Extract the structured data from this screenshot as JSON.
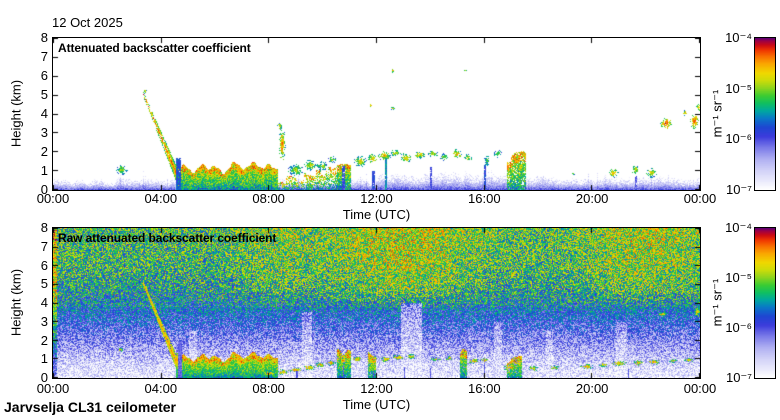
{
  "page": {
    "date_title": "12 Oct 2025",
    "instrument_label": "Jarvselja CL31 ceilometer",
    "background_color": "#ffffff",
    "text_color": "#000000"
  },
  "colormap_stops": [
    [
      0,
      "#ffffff"
    ],
    [
      0.05,
      "#ececfc"
    ],
    [
      0.12,
      "#d4d4f8"
    ],
    [
      0.2,
      "#b0b0f2"
    ],
    [
      0.28,
      "#7878e8"
    ],
    [
      0.35,
      "#3c3cdc"
    ],
    [
      0.41,
      "#1e46d2"
    ],
    [
      0.47,
      "#0a78c8"
    ],
    [
      0.52,
      "#00a8a0"
    ],
    [
      0.57,
      "#10c060"
    ],
    [
      0.62,
      "#3ccc32"
    ],
    [
      0.67,
      "#8cd41e"
    ],
    [
      0.72,
      "#ccdc0a"
    ],
    [
      0.77,
      "#f0d800"
    ],
    [
      0.83,
      "#faa800"
    ],
    [
      0.88,
      "#f87000"
    ],
    [
      0.92,
      "#f03800"
    ],
    [
      0.955,
      "#cc0a14"
    ],
    [
      0.985,
      "#98004b"
    ],
    [
      1,
      "#5f0070"
    ]
  ],
  "chart_data": [
    {
      "type": "heatmap",
      "title": "Attenuated backscatter coefficient",
      "xlabel": "Time (UTC)",
      "ylabel": "Height (km)",
      "x_range_hours": [
        0,
        24
      ],
      "y_range_km": [
        0,
        8
      ],
      "x_tick_labels": [
        "00:00",
        "04:00",
        "08:00",
        "12:00",
        "16:00",
        "20:00",
        "00:00"
      ],
      "y_tick_labels": [
        "0",
        "1",
        "2",
        "3",
        "4",
        "5",
        "6",
        "7",
        "8"
      ],
      "grid": false,
      "colorbar": {
        "unit": "m⁻¹ sr⁻¹",
        "tick_labels": [
          "10⁻⁴",
          "10⁻⁵",
          "10⁻⁶",
          "10⁻⁷"
        ],
        "scale": "log",
        "range": [
          1e-07,
          0.0001
        ],
        "position": "right"
      },
      "features": {
        "format_note": "t in hours UTC, h in km, v is normalized log10 backscatter 0..1 (0=1e-7, 1=1e-4); blobs are [t, h, t_radius, h_radius, v]",
        "surface_noise": {
          "h_top_base": 0.38,
          "h_top_var": 0.32,
          "v": [
            0.07,
            0.34
          ],
          "taller": [
            [
              12.0,
              16.6,
              0.3
            ],
            [
              16.6,
              24.0,
              0.12
            ]
          ]
        },
        "plume": {
          "from": [
            3.35,
            5.05
          ],
          "to": [
            4.55,
            0.95
          ],
          "half_width_km": [
            0.13,
            0.42
          ],
          "v_core": 0.9,
          "v_edge": 0.55
        },
        "mixed_layer_bands": [
          {
            "t": [
              4.55,
              8.35
            ],
            "h_top": [
              0.8,
              1.5
            ],
            "density": 1.0
          },
          {
            "t": [
              8.35,
              9.3
            ],
            "h_top": [
              0.35,
              0.8
            ],
            "density": 0.55
          },
          {
            "t": [
              9.3,
              10.55
            ],
            "h_top": [
              0.7,
              1.5
            ],
            "density": 0.6
          },
          {
            "t": [
              10.55,
              11.05
            ],
            "h_top": [
              1.2,
              1.7
            ],
            "density": 0.95
          },
          {
            "t": [
              16.85,
              17.55
            ],
            "h_top": [
              1.4,
              2.1
            ],
            "density": 0.85
          }
        ],
        "precip_columns": [
          [
            4.65,
            0.18,
            1.7,
            0.42
          ],
          [
            10.78,
            0.1,
            1.25,
            0.36
          ],
          [
            11.9,
            0.1,
            1.0,
            0.38
          ],
          [
            12.35,
            0.08,
            1.9,
            0.5
          ],
          [
            14.02,
            0.08,
            1.2,
            0.33
          ],
          [
            16.02,
            0.1,
            1.3,
            0.4
          ],
          [
            21.62,
            0.08,
            0.72,
            0.32
          ]
        ],
        "blobs": [
          [
            2.55,
            1.05,
            0.22,
            0.28,
            0.72
          ],
          [
            3.42,
            5.2,
            0.06,
            0.15,
            0.8
          ],
          [
            8.5,
            2.4,
            0.13,
            0.9,
            0.88
          ],
          [
            8.42,
            3.35,
            0.1,
            0.18,
            0.8
          ],
          [
            9.0,
            1.05,
            0.3,
            0.3,
            0.72
          ],
          [
            9.55,
            1.3,
            0.25,
            0.3,
            0.75
          ],
          [
            10.0,
            1.25,
            0.22,
            0.28,
            0.7
          ],
          [
            10.35,
            1.6,
            0.15,
            0.2,
            0.72
          ],
          [
            11.4,
            1.5,
            0.25,
            0.3,
            0.78
          ],
          [
            11.85,
            1.65,
            0.2,
            0.25,
            0.82
          ],
          [
            12.3,
            1.8,
            0.25,
            0.25,
            0.82
          ],
          [
            12.7,
            1.95,
            0.2,
            0.2,
            0.78
          ],
          [
            13.1,
            1.7,
            0.25,
            0.25,
            0.82
          ],
          [
            13.6,
            1.85,
            0.22,
            0.2,
            0.8
          ],
          [
            14.1,
            1.9,
            0.2,
            0.2,
            0.78
          ],
          [
            14.5,
            1.75,
            0.15,
            0.2,
            0.72
          ],
          [
            15.0,
            1.9,
            0.2,
            0.25,
            0.82
          ],
          [
            15.4,
            1.7,
            0.15,
            0.2,
            0.74
          ],
          [
            16.1,
            1.55,
            0.12,
            0.3,
            0.65
          ],
          [
            16.5,
            1.9,
            0.15,
            0.2,
            0.72
          ],
          [
            11.8,
            4.45,
            0.06,
            0.09,
            0.85
          ],
          [
            12.6,
            4.3,
            0.08,
            0.09,
            0.8
          ],
          [
            12.6,
            6.3,
            0.07,
            0.12,
            0.85
          ],
          [
            15.3,
            6.3,
            0.06,
            0.1,
            0.85
          ],
          [
            17.35,
            1.2,
            0.14,
            0.35,
            0.8
          ],
          [
            19.3,
            0.85,
            0.07,
            0.1,
            0.62
          ],
          [
            20.8,
            0.9,
            0.18,
            0.25,
            0.82
          ],
          [
            21.6,
            1.05,
            0.12,
            0.28,
            0.78
          ],
          [
            22.2,
            0.9,
            0.2,
            0.25,
            0.76
          ],
          [
            22.75,
            3.5,
            0.22,
            0.28,
            0.96
          ],
          [
            23.45,
            4.05,
            0.1,
            0.15,
            0.82
          ],
          [
            23.8,
            3.6,
            0.16,
            0.4,
            0.93
          ],
          [
            23.95,
            4.35,
            0.09,
            0.2,
            0.8
          ]
        ]
      }
    },
    {
      "type": "heatmap",
      "title": "Raw attenuated backscatter coefficient",
      "xlabel": "Time (UTC)",
      "ylabel": "Height (km)",
      "x_range_hours": [
        0,
        24
      ],
      "y_range_km": [
        0,
        8
      ],
      "x_tick_labels": [
        "00:00",
        "04:00",
        "08:00",
        "12:00",
        "16:00",
        "20:00",
        "00:00"
      ],
      "y_tick_labels": [
        "0",
        "1",
        "2",
        "3",
        "4",
        "5",
        "6",
        "7",
        "8"
      ],
      "grid": false,
      "colorbar": {
        "unit": "m⁻¹ sr⁻¹",
        "tick_labels": [
          "10⁻⁴",
          "10⁻⁵",
          "10⁻⁶",
          "10⁻⁷"
        ],
        "scale": "log",
        "range": [
          1e-07,
          0.0001
        ],
        "position": "right"
      },
      "features": {
        "format_note": "noisy raw signal: background speckle value rises with height; hot_regions are [t_center, t_sigma, extra_v] above 3.5 km; columns are [t, width_h, h_max, v]",
        "noise_background": {
          "profile": [
            [
              0,
              0.05
            ],
            [
              0.5,
              0.08
            ],
            [
              1,
              0.14
            ],
            [
              2,
              0.25
            ],
            [
              3,
              0.37
            ],
            [
              4,
              0.47
            ],
            [
              5,
              0.53
            ],
            [
              6,
              0.57
            ],
            [
              8,
              0.6
            ]
          ],
          "speckle_amp": 0.42,
          "hot_regions": [
            [
              13,
              3.0,
              0.13
            ],
            [
              22,
              2.6,
              0.11
            ],
            [
              8.2,
              1.4,
              0.06
            ]
          ],
          "red_dot_rate": 0.006
        },
        "left_edge_column": {
          "t_max": 0.14,
          "v_boost": 0.22
        },
        "light_columns": [
          [
            5.05,
            5.35,
            2.5,
            0.65
          ],
          [
            9.25,
            9.6,
            3.5,
            0.55
          ],
          [
            12.9,
            13.7,
            4.0,
            0.5
          ],
          [
            16.35,
            16.65,
            3.0,
            0.6
          ],
          [
            18.3,
            18.55,
            2.5,
            0.7
          ],
          [
            20.9,
            21.3,
            3.0,
            0.6
          ]
        ],
        "plume": {
          "from": [
            3.35,
            5.05
          ],
          "to": [
            4.55,
            0.95
          ],
          "half_width_km": [
            0.13,
            0.38
          ],
          "v_core": 0.85,
          "v_edge": 0.65
        },
        "mixed_layer_bands": [
          {
            "t": [
              4.55,
              8.35
            ],
            "h_top": [
              0.8,
              1.4
            ],
            "density": 1.0
          },
          {
            "t": [
              10.55,
              11.05
            ],
            "h_top": [
              1.2,
              1.6
            ],
            "density": 0.95
          },
          {
            "t": [
              11.7,
              11.98
            ],
            "h_top": [
              1.1,
              1.4
            ],
            "density": 0.95
          },
          {
            "t": [
              15.1,
              15.35
            ],
            "h_top": [
              1.2,
              1.6
            ],
            "density": 0.9
          },
          {
            "t": [
              16.85,
              17.4
            ],
            "h_top": [
              0.8,
              1.2
            ],
            "density": 0.85
          }
        ],
        "dark_columns": [
          [
            4.72,
            0.16,
            2.0,
            0.3
          ],
          [
            9.05,
            0.05,
            0.5,
            0.32
          ],
          [
            10.78,
            0.05,
            0.7,
            0.32
          ],
          [
            11.9,
            0.04,
            0.4,
            0.33
          ],
          [
            13.05,
            0.05,
            0.6,
            0.33
          ],
          [
            14.0,
            0.05,
            0.55,
            0.32
          ],
          [
            16.0,
            0.06,
            0.8,
            0.33
          ],
          [
            21.35,
            0.05,
            0.5,
            0.32
          ]
        ],
        "surface_blobs": [
          [
            2.5,
            1.5,
            0.1,
            0.12,
            0.82
          ],
          [
            8.0,
            0.25,
            0.3,
            0.14,
            0.85
          ],
          [
            8.5,
            0.32,
            0.25,
            0.14,
            0.85
          ],
          [
            9.0,
            0.42,
            0.3,
            0.14,
            0.83
          ],
          [
            9.5,
            0.55,
            0.25,
            0.14,
            0.86
          ],
          [
            9.9,
            0.7,
            0.2,
            0.14,
            0.85
          ],
          [
            10.3,
            0.8,
            0.2,
            0.14,
            0.85
          ],
          [
            10.75,
            0.92,
            0.15,
            0.18,
            0.86
          ],
          [
            11.3,
            1.0,
            0.2,
            0.14,
            0.86
          ],
          [
            11.9,
            1.05,
            0.15,
            0.15,
            0.88
          ],
          [
            12.35,
            1.0,
            0.2,
            0.14,
            0.85
          ],
          [
            12.8,
            1.1,
            0.25,
            0.14,
            0.85
          ],
          [
            13.3,
            1.15,
            0.2,
            0.14,
            0.83
          ],
          [
            14.2,
            1.0,
            0.2,
            0.12,
            0.8
          ],
          [
            14.7,
            1.05,
            0.15,
            0.12,
            0.8
          ],
          [
            15.6,
            0.9,
            0.2,
            0.14,
            0.85
          ],
          [
            16.0,
            0.95,
            0.15,
            0.12,
            0.83
          ],
          [
            17.0,
            0.55,
            0.3,
            0.2,
            0.86
          ],
          [
            17.8,
            0.5,
            0.2,
            0.14,
            0.8
          ],
          [
            18.6,
            0.55,
            0.2,
            0.12,
            0.76
          ],
          [
            19.8,
            0.6,
            0.25,
            0.14,
            0.85
          ],
          [
            20.4,
            0.7,
            0.2,
            0.12,
            0.8
          ],
          [
            21.0,
            0.78,
            0.3,
            0.14,
            0.86
          ],
          [
            21.7,
            0.8,
            0.2,
            0.14,
            0.85
          ],
          [
            22.3,
            0.85,
            0.25,
            0.14,
            0.85
          ],
          [
            23.0,
            0.9,
            0.2,
            0.12,
            0.8
          ],
          [
            23.6,
            0.95,
            0.2,
            0.12,
            0.85
          ],
          [
            22.6,
            3.4,
            0.15,
            0.12,
            0.85
          ],
          [
            23.9,
            3.5,
            0.1,
            0.3,
            0.86
          ]
        ]
      }
    }
  ]
}
